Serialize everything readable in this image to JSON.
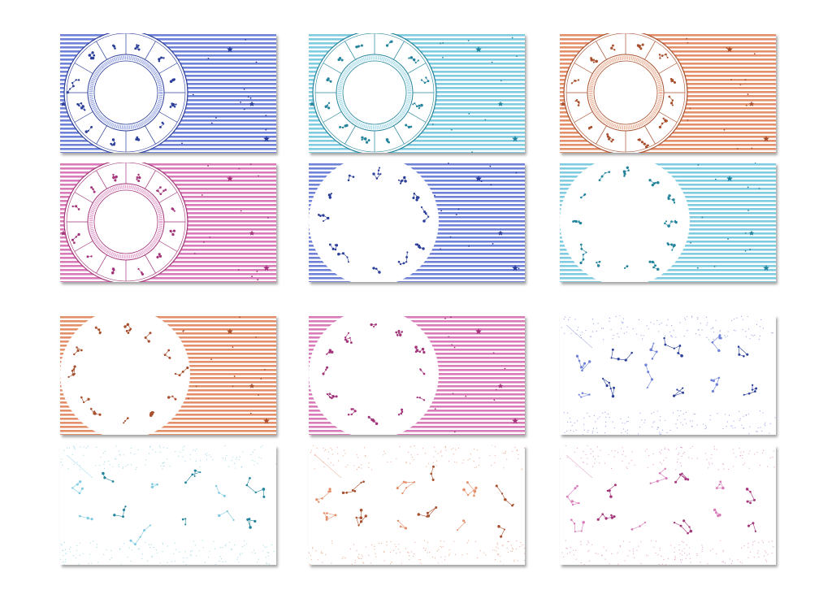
{
  "palette": {
    "blue": "#6f82d8",
    "cyan": "#7fcbe0",
    "orange": "#e3906a",
    "pink": "#d97bb9",
    "dark_blue": "#2b3f9a",
    "dark_cyan": "#23849c",
    "dark_orange": "#a8502e",
    "dark_pink": "#a3357a",
    "maroon": "#8a2b3a"
  },
  "cards": [
    {
      "design": "zodiac-wheel",
      "color": "blue"
    },
    {
      "design": "zodiac-wheel",
      "color": "cyan"
    },
    {
      "design": "zodiac-wheel",
      "color": "orange"
    },
    {
      "design": "zodiac-wheel",
      "color": "pink"
    },
    {
      "design": "constellation-circle",
      "color": "blue"
    },
    {
      "design": "constellation-circle",
      "color": "cyan"
    },
    {
      "design": "constellation-circle",
      "color": "orange"
    },
    {
      "design": "constellation-circle",
      "color": "pink"
    },
    {
      "design": "constellation-scatter",
      "color": "blue"
    },
    {
      "design": "constellation-scatter",
      "color": "cyan"
    },
    {
      "design": "constellation-scatter",
      "color": "orange"
    },
    {
      "design": "constellation-scatter",
      "color": "pink"
    }
  ]
}
